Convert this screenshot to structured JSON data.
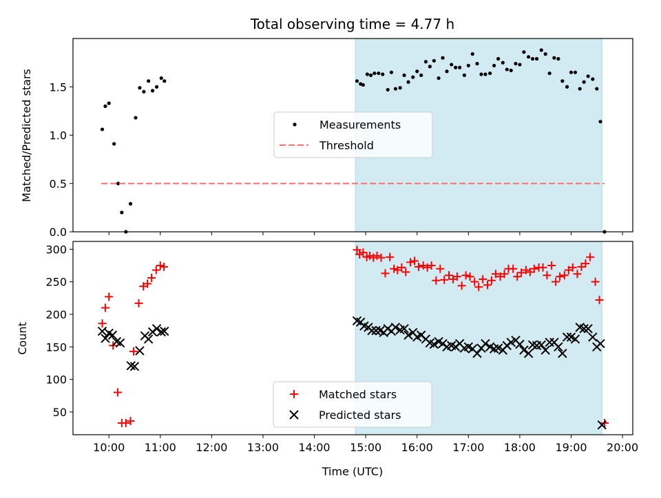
{
  "chart_data": {
    "title": "Total observing time = 4.77 h",
    "xlabel": "Time (UTC)",
    "x_ticks": [
      "10:00",
      "11:00",
      "12:00",
      "13:00",
      "14:00",
      "15:00",
      "16:00",
      "17:00",
      "18:00",
      "19:00",
      "20:00"
    ],
    "x_range_hours": [
      9.3,
      20.2
    ],
    "shaded_interval_hours": [
      14.8,
      19.6
    ],
    "shaded_color": "#add8e6",
    "panels": [
      {
        "type": "scatter",
        "ylabel": "Matched/Predicted stars",
        "ylim": [
          0,
          2.0
        ],
        "y_ticks": [
          0.0,
          0.5,
          1.0,
          1.5
        ],
        "y_tick_labels": [
          "0.0",
          "0.5",
          "1.0",
          "1.5"
        ],
        "legend": {
          "placement": "center",
          "entries": [
            "Measurements",
            "Threshold"
          ]
        },
        "series": [
          {
            "name": "Measurements",
            "marker": "dot",
            "color": "#000000",
            "x": [
              9.87,
              9.93,
              10.0,
              10.1,
              10.18,
              10.25,
              10.33,
              10.42,
              10.52,
              10.6,
              10.68,
              10.77,
              10.85,
              10.93,
              11.02,
              11.08,
              14.83,
              14.9,
              14.95,
              15.03,
              15.1,
              15.17,
              15.25,
              15.33,
              15.43,
              15.5,
              15.58,
              15.67,
              15.75,
              15.83,
              15.92,
              16.0,
              16.08,
              16.17,
              16.25,
              16.33,
              16.42,
              16.5,
              16.58,
              16.67,
              16.75,
              16.83,
              16.92,
              17.0,
              17.08,
              17.17,
              17.25,
              17.33,
              17.42,
              17.5,
              17.58,
              17.67,
              17.75,
              17.83,
              17.92,
              18.0,
              18.08,
              18.17,
              18.25,
              18.33,
              18.42,
              18.5,
              18.58,
              18.67,
              18.75,
              18.83,
              18.92,
              19.0,
              19.08,
              19.17,
              19.25,
              19.33,
              19.42,
              19.5,
              19.57,
              19.65
            ],
            "y": [
              1.06,
              1.3,
              1.33,
              0.91,
              0.5,
              0.2,
              0.0,
              0.29,
              1.18,
              1.49,
              1.45,
              1.56,
              1.46,
              1.5,
              1.59,
              1.56,
              1.56,
              1.53,
              1.52,
              1.63,
              1.62,
              1.64,
              1.64,
              1.63,
              1.47,
              1.65,
              1.48,
              1.49,
              1.62,
              1.55,
              1.6,
              1.66,
              1.62,
              1.76,
              1.71,
              1.77,
              1.59,
              1.8,
              1.66,
              1.73,
              1.7,
              1.7,
              1.62,
              1.72,
              1.84,
              1.74,
              1.63,
              1.63,
              1.64,
              1.72,
              1.79,
              1.75,
              1.68,
              1.67,
              1.74,
              1.73,
              1.86,
              1.81,
              1.79,
              1.79,
              1.88,
              1.84,
              1.64,
              1.8,
              1.79,
              1.56,
              1.5,
              1.65,
              1.65,
              1.48,
              1.55,
              1.61,
              1.58,
              1.48,
              1.14,
              0.0
            ]
          },
          {
            "name": "Threshold",
            "marker": "dashed-line",
            "color": "#ff6f6f",
            "x": [
              9.85,
              19.65
            ],
            "y": [
              0.5,
              0.5
            ]
          }
        ]
      },
      {
        "type": "scatter",
        "ylabel": "Count",
        "ylim": [
          15,
          312
        ],
        "y_ticks": [
          50,
          100,
          150,
          200,
          250,
          300
        ],
        "y_tick_labels": [
          "50",
          "100",
          "150",
          "200",
          "250",
          "300"
        ],
        "legend": {
          "placement": "lower center",
          "entries": [
            "Matched stars",
            "Predicted stars"
          ]
        },
        "series": [
          {
            "name": "Matched stars",
            "marker": "plus",
            "color": "#ff0000",
            "x": [
              9.87,
              9.93,
              10.0,
              10.08,
              10.17,
              10.25,
              10.33,
              10.42,
              10.48,
              10.58,
              10.67,
              10.75,
              10.83,
              10.92,
              11.0,
              11.07,
              14.83,
              14.88,
              14.95,
              15.02,
              15.08,
              15.15,
              15.22,
              15.3,
              15.38,
              15.47,
              15.55,
              15.62,
              15.7,
              15.78,
              15.87,
              15.95,
              16.03,
              16.12,
              16.2,
              16.28,
              16.37,
              16.45,
              16.53,
              16.62,
              16.7,
              16.78,
              16.87,
              16.95,
              17.03,
              17.12,
              17.2,
              17.28,
              17.37,
              17.45,
              17.53,
              17.62,
              17.7,
              17.78,
              17.87,
              17.95,
              18.03,
              18.12,
              18.2,
              18.28,
              18.37,
              18.45,
              18.53,
              18.62,
              18.7,
              18.78,
              18.87,
              18.95,
              19.03,
              19.12,
              19.2,
              19.28,
              19.37,
              19.47,
              19.55,
              19.65
            ],
            "y": [
              186,
              210,
              227,
              152,
              80,
              33,
              33,
              36,
              143,
              217,
              243,
              247,
              256,
              268,
              275,
              273,
              299,
              292,
              295,
              288,
              290,
              287,
              290,
              287,
              263,
              288,
              270,
              268,
              272,
              265,
              280,
              282,
              273,
              275,
              272,
              275,
              252,
              270,
              253,
              260,
              254,
              258,
              244,
              260,
              258,
              250,
              242,
              254,
              245,
              252,
              262,
              258,
              262,
              270,
              270,
              258,
              264,
              268,
              265,
              270,
              272,
              272,
              260,
              275,
              250,
              258,
              260,
              268,
              272,
              262,
              273,
              278,
              288,
              250,
              222,
              33
            ]
          },
          {
            "name": "Predicted stars",
            "marker": "x",
            "color": "#000000",
            "x": [
              9.87,
              9.93,
              10.0,
              10.07,
              10.15,
              10.22,
              10.43,
              10.5,
              10.6,
              10.7,
              10.77,
              10.85,
              10.93,
              11.02,
              11.08,
              14.83,
              14.9,
              14.97,
              15.05,
              15.12,
              15.2,
              15.28,
              15.35,
              15.43,
              15.5,
              15.58,
              15.67,
              15.75,
              15.83,
              15.92,
              16.0,
              16.08,
              16.17,
              16.25,
              16.33,
              16.42,
              16.5,
              16.58,
              16.67,
              16.75,
              16.83,
              16.92,
              17.0,
              17.08,
              17.17,
              17.25,
              17.33,
              17.42,
              17.5,
              17.58,
              17.67,
              17.75,
              17.83,
              17.92,
              18.0,
              18.08,
              18.17,
              18.25,
              18.33,
              18.42,
              18.5,
              18.58,
              18.67,
              18.75,
              18.83,
              18.92,
              19.0,
              19.08,
              19.17,
              19.25,
              19.33,
              19.42,
              19.5,
              19.57,
              19.6
            ],
            "y": [
              174,
              163,
              171,
              168,
              158,
              156,
              121,
              120,
              144,
              167,
              162,
              173,
              178,
              173,
              174,
              190,
              188,
              182,
              180,
              175,
              175,
              175,
              172,
              178,
              174,
              180,
              176,
              178,
              168,
              172,
              165,
              168,
              162,
              156,
              154,
              158,
              155,
              150,
              152,
              150,
              155,
              148,
              150,
              147,
              140,
              148,
              155,
              150,
              147,
              148,
              145,
              152,
              157,
              160,
              154,
              145,
              140,
              153,
              152,
              153,
              145,
              157,
              157,
              150,
              140,
              165,
              165,
              162,
              180,
              178,
              178,
              165,
              150,
              155,
              30
            ]
          }
        ]
      }
    ]
  }
}
